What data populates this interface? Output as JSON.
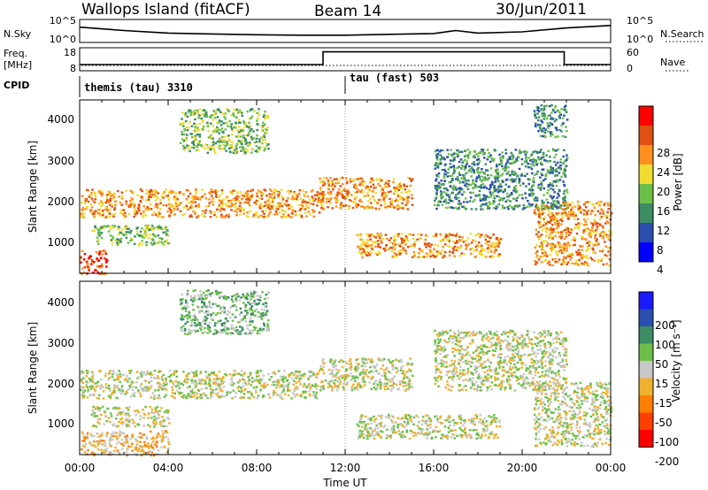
{
  "header": {
    "station": "Wallops Island (fitACF)",
    "beam": "Beam 14",
    "date": "30/Jun/2011"
  },
  "noise_panel": {
    "left_label": "N.Sky",
    "right_label": "N.Search",
    "left_ticks": [
      "10^5",
      "10^0"
    ],
    "right_ticks": [
      "10^5",
      "10^0"
    ]
  },
  "freq_panel": {
    "left_label_line1": "Freq.",
    "left_label_line2": "[MHz]",
    "right_label": "Nave",
    "left_ticks": [
      "18",
      "8"
    ],
    "right_ticks": [
      "60",
      "0"
    ]
  },
  "cpid_panel": {
    "label": "CPID",
    "segments": [
      {
        "name": "themis (tau)",
        "id": "3310",
        "start_hour": 0
      },
      {
        "name": "tau (fast)",
        "id": "503",
        "start_hour": 11.8
      }
    ]
  },
  "power_panel": {
    "ylabel": "Slant Range [km]",
    "yticks": [
      "4000",
      "3000",
      "2000",
      "1000"
    ],
    "colorbar_label": "Power [dB]",
    "colorbar_ticks": [
      "28",
      "24",
      "20",
      "16",
      "12",
      "8",
      "4"
    ],
    "colors": [
      "#0000ff",
      "#2a4fb0",
      "#3c8c64",
      "#6cc04a",
      "#f0dc30",
      "#ff9020",
      "#e05010",
      "#ff0000"
    ]
  },
  "velocity_panel": {
    "ylabel": "Slant Range [km]",
    "yticks": [
      "4000",
      "3000",
      "2000",
      "1000"
    ],
    "colorbar_label": "Velocity [m s⁻¹]",
    "colorbar_ticks": [
      "200",
      "100",
      "50",
      "15",
      "-15",
      "-50",
      "-100",
      "-200"
    ],
    "colors": [
      "#1a1aff",
      "#2a4fb0",
      "#3c8c64",
      "#6cc04a",
      "#c8c8c8",
      "#f0b030",
      "#ff8000",
      "#ff4000",
      "#ff0000"
    ]
  },
  "time_axis": {
    "label": "Time UT",
    "ticks": [
      "00:00",
      "04:00",
      "08:00",
      "12:00",
      "16:00",
      "20:00",
      "00:00"
    ]
  },
  "chart_data": [
    {
      "type": "line",
      "name": "noise",
      "x_hours": [
        0,
        2,
        4,
        6,
        8,
        10,
        12,
        14,
        16,
        17,
        18,
        20,
        22,
        24
      ],
      "values": [
        3.4,
        2.6,
        2.0,
        1.8,
        1.6,
        1.5,
        1.5,
        1.7,
        1.9,
        2.6,
        2.0,
        2.3,
        3.2,
        3.8
      ],
      "ylim": [
        0,
        5
      ]
    },
    {
      "type": "line",
      "name": "frequency",
      "x_hours": [
        0,
        11,
        11,
        21.9,
        21.9,
        24
      ],
      "values": [
        10.5,
        10.5,
        16.5,
        16.5,
        10.5,
        10.5
      ],
      "ylim": [
        8,
        18
      ]
    },
    {
      "type": "heatmap",
      "name": "power",
      "xlim": [
        0,
        24
      ],
      "ylim": [
        180,
        4500
      ],
      "bands": [
        {
          "t0": 0.0,
          "t1": 10.8,
          "r0": 1600,
          "r1": 2300,
          "level": 5
        },
        {
          "t0": 0.5,
          "t1": 4.0,
          "r0": 900,
          "r1": 1400,
          "level": 3
        },
        {
          "t0": 4.5,
          "t1": 8.5,
          "r0": 3200,
          "r1": 4300,
          "level": 3
        },
        {
          "t0": 0.0,
          "t1": 1.2,
          "r0": 180,
          "r1": 800,
          "level": 6
        },
        {
          "t0": 10.8,
          "t1": 15.0,
          "r0": 1800,
          "r1": 2600,
          "level": 5
        },
        {
          "t0": 12.5,
          "t1": 19.0,
          "r0": 600,
          "r1": 1200,
          "level": 5
        },
        {
          "t0": 20.5,
          "t1": 24.0,
          "r0": 400,
          "r1": 2000,
          "level": 5
        },
        {
          "t0": 16.0,
          "t1": 22.0,
          "r0": 1800,
          "r1": 3300,
          "level": 2
        },
        {
          "t0": 20.5,
          "t1": 22.0,
          "r0": 3600,
          "r1": 4400,
          "level": 2
        }
      ]
    },
    {
      "type": "heatmap",
      "name": "velocity",
      "xlim": [
        0,
        24
      ],
      "ylim": [
        180,
        4500
      ],
      "bands": [
        {
          "t0": 0.0,
          "t1": 10.8,
          "r0": 1600,
          "r1": 2300,
          "level": 4
        },
        {
          "t0": 0.5,
          "t1": 4.0,
          "r0": 900,
          "r1": 1400,
          "level": 4
        },
        {
          "t0": 4.5,
          "t1": 8.5,
          "r0": 3200,
          "r1": 4300,
          "level": 3
        },
        {
          "t0": 0.0,
          "t1": 4.0,
          "r0": 180,
          "r1": 800,
          "level": 5
        },
        {
          "t0": 10.8,
          "t1": 15.0,
          "r0": 1800,
          "r1": 2600,
          "level": 4
        },
        {
          "t0": 12.5,
          "t1": 19.0,
          "r0": 600,
          "r1": 1200,
          "level": 4
        },
        {
          "t0": 20.5,
          "t1": 24.0,
          "r0": 400,
          "r1": 2000,
          "level": 4
        },
        {
          "t0": 16.0,
          "t1": 22.0,
          "r0": 1800,
          "r1": 3300,
          "level": 4
        }
      ]
    }
  ]
}
